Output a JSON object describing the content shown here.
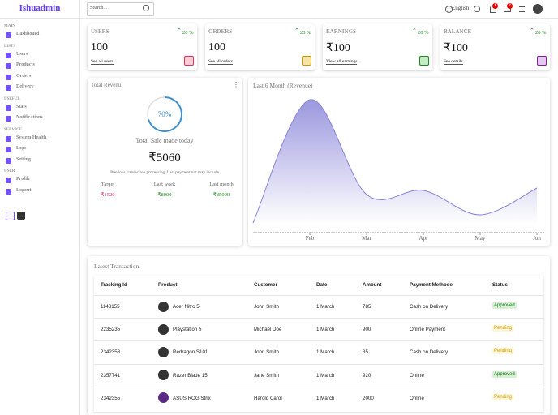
{
  "sidebar": {
    "logo": "Ishuadmin",
    "sections": [
      {
        "title": "MAIN",
        "items": [
          "Dashboard"
        ]
      },
      {
        "title": "LISTS",
        "items": [
          "Users",
          "Products",
          "Orders",
          "Delivery"
        ]
      },
      {
        "title": "USEFUL",
        "items": [
          "Stats",
          "Notifications"
        ]
      },
      {
        "title": "SERVICE",
        "items": [
          "System Health",
          "Logs",
          "Setting"
        ]
      },
      {
        "title": "USER",
        "items": [
          "Profile",
          "Logout"
        ]
      }
    ]
  },
  "navbar": {
    "search_placeholder": "Search...",
    "language": "English",
    "notification_count": "1",
    "message_count": "2"
  },
  "widgets": [
    {
      "title": "USERS",
      "percentage": "20 %",
      "amount": "100",
      "link": "See all users"
    },
    {
      "title": "ORDERS",
      "percentage": "20 %",
      "amount": "100",
      "link": "See all orders"
    },
    {
      "title": "EARNINGS",
      "percentage": "20 %",
      "amount": "₹100",
      "link": "View all earnings"
    },
    {
      "title": "BALANCE",
      "percentage": "20 %",
      "amount": "₹100",
      "link": "See details"
    }
  ],
  "featured": {
    "title": "Total Revenu",
    "progress": {
      "value": 70,
      "label": "70%"
    },
    "subtitle": "Total Sale made today",
    "amount": "₹5060",
    "description": "Previous transaction processing. Last payment not may include",
    "summary": [
      {
        "title": "Target",
        "amount": "₹1520"
      },
      {
        "title": "Last week",
        "amount": "₹8000"
      },
      {
        "title": "Last month",
        "amount": "₹85000"
      }
    ]
  },
  "chart_data": {
    "type": "area",
    "title": "Last 6 Month (Revenue)",
    "categories": [
      null,
      "Feb",
      "Mar",
      "Apr",
      "May",
      "Jun"
    ],
    "values": [
      10,
      162,
      45,
      50,
      20,
      53
    ],
    "color": "#8884d8",
    "ylim": [
      0,
      170
    ]
  },
  "table": {
    "title": "Latest Transaction",
    "columns": [
      "Tracking Id",
      "Product",
      "Customer",
      "Date",
      "Amount",
      "Payment Methode",
      "Status"
    ],
    "rows": [
      [
        "1143155",
        "Acer Nitro 5",
        "John Smith",
        "1 March",
        785,
        "Cash on Delivery",
        "Approved"
      ],
      [
        "2235235",
        "Playstation 5",
        "Michael Doe",
        "1 March",
        900,
        "Online Payment",
        "Pending"
      ],
      [
        "2342353",
        "Redragon S101",
        "John Smith",
        "1 March",
        35,
        "Cash on Delivery",
        "Pending"
      ],
      [
        "2357741",
        "Razer Blade 15",
        "Jane Smith",
        "1 March",
        920,
        "Online",
        "Approved"
      ],
      [
        "2342355",
        "ASUS ROG Strix",
        "Harold Carol",
        "1 March",
        2000,
        "Online",
        "Pending"
      ]
    ]
  }
}
